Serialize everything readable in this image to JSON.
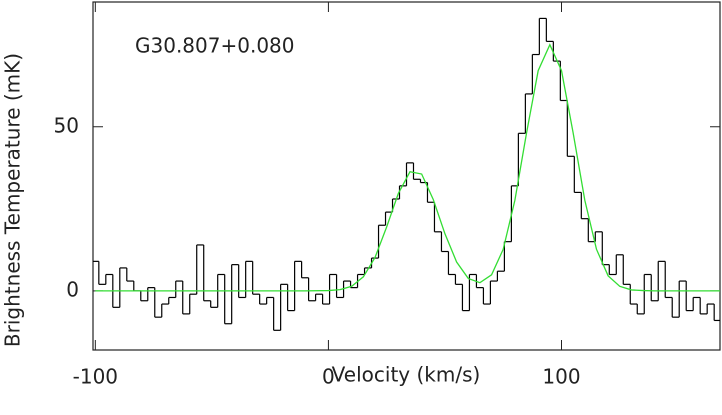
{
  "chart_data": {
    "type": "step",
    "annotation": "G30.807+0.080",
    "x_label": "Velocity (km/s)",
    "y_label": "Brightness Temperature (mK)",
    "xlim": [
      -101,
      168
    ],
    "ylim": [
      -18,
      88
    ],
    "xticks": [
      -100,
      0,
      100
    ],
    "yticks": [
      0,
      50
    ],
    "series": [
      {
        "kind": "step",
        "color": "#000000",
        "x": [
          -100,
          -97,
          -94,
          -91,
          -88,
          -85,
          -82,
          -79,
          -76,
          -73,
          -70,
          -67,
          -64,
          -61,
          -58,
          -55,
          -52,
          -49,
          -46,
          -43,
          -40,
          -37,
          -34,
          -31,
          -28,
          -25,
          -22,
          -19,
          -16,
          -13,
          -10,
          -7,
          -4,
          -1,
          2,
          5,
          8,
          11,
          14,
          17,
          20,
          23,
          26,
          29,
          32,
          35,
          38,
          41,
          44,
          47,
          50,
          53,
          56,
          59,
          62,
          65,
          68,
          71,
          74,
          77,
          80,
          83,
          86,
          89,
          92,
          95,
          98,
          101,
          104,
          107,
          110,
          113,
          116,
          119,
          122,
          125,
          128,
          131,
          134,
          137,
          140,
          143,
          146,
          149,
          152,
          155,
          158,
          161,
          164,
          167
        ],
        "values": [
          9,
          2,
          5,
          -5,
          7,
          3,
          0,
          -3,
          1,
          -8,
          -4,
          -2,
          3,
          -7,
          -1,
          14,
          -3,
          -5,
          5,
          -10,
          8,
          -2,
          9,
          -1,
          -4,
          -2,
          -12,
          2,
          -6,
          9,
          4,
          -3,
          -1,
          -4,
          5,
          -2,
          3,
          1,
          5,
          7,
          10,
          20,
          24,
          28,
          32,
          39,
          34,
          33,
          27,
          18,
          12,
          5,
          2,
          -6,
          5,
          1,
          -4,
          3,
          6,
          15,
          32,
          48,
          60,
          72,
          83,
          76,
          70,
          58,
          41,
          30,
          22,
          15,
          18,
          8,
          5,
          11,
          2,
          -4,
          -7,
          5,
          -3,
          9,
          -2,
          -8,
          3,
          -6,
          -2,
          -7,
          -4,
          -9
        ]
      },
      {
        "kind": "line",
        "color": "#33dd33",
        "x": [
          -100,
          -90,
          -80,
          -70,
          -60,
          -50,
          -40,
          -30,
          -20,
          -10,
          0,
          5,
          10,
          15,
          20,
          25,
          30,
          35,
          40,
          45,
          50,
          55,
          60,
          65,
          70,
          75,
          80,
          85,
          90,
          95,
          100,
          105,
          110,
          115,
          120,
          125,
          130,
          135,
          140,
          150,
          160,
          168
        ],
        "values": [
          0,
          0,
          0,
          0,
          0,
          0,
          0,
          0,
          0,
          0,
          0.1,
          0.4,
          1.4,
          4.3,
          10.2,
          19.5,
          29.7,
          36.3,
          35.6,
          27.8,
          17.4,
          8.8,
          3.8,
          2.5,
          4.9,
          12.7,
          27.6,
          48.1,
          67.1,
          75,
          67.1,
          48.1,
          27.6,
          12.7,
          4.6,
          1.4,
          0.3,
          0.1,
          0,
          0,
          0,
          0
        ]
      }
    ]
  }
}
